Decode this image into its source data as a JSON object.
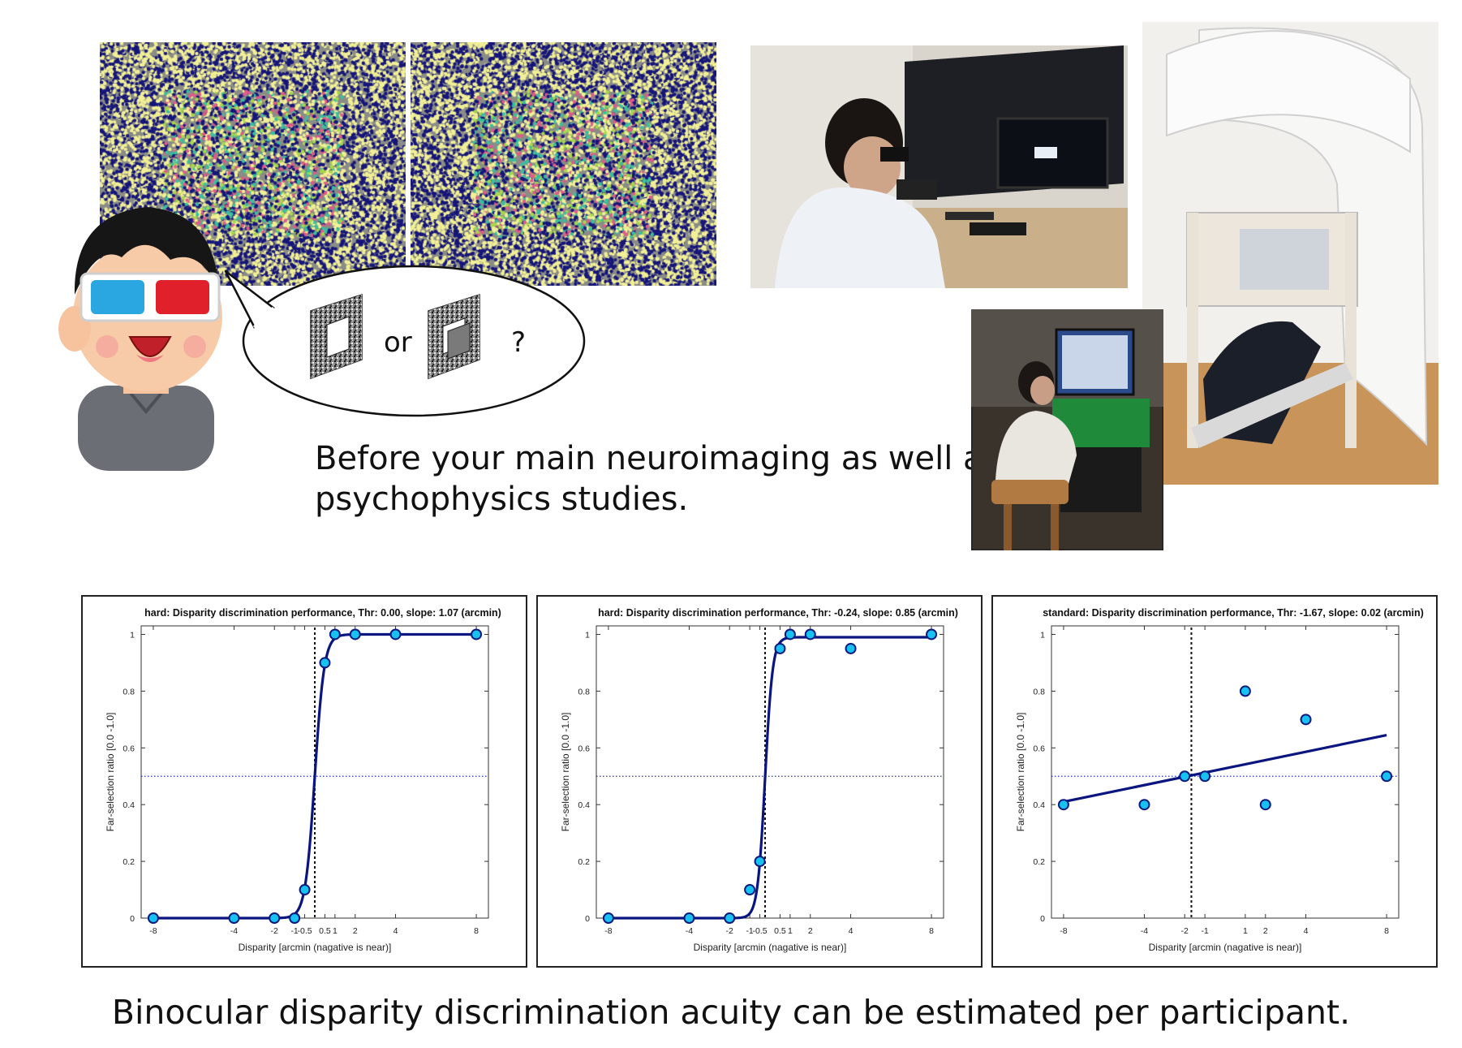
{
  "figure": {
    "caption_top_line1": "Before your main neuroimaging as well as",
    "caption_top_line2": "psychophysics studies.",
    "caption_bottom": "Binocular disparity discrimination acuity can be estimated per participant.",
    "bubble_or": "or",
    "bubble_question": "?"
  },
  "icons": {
    "stereogram": "random-dot-stereogram",
    "cartoon": "boy-with-3d-glasses-icon",
    "photo_lab": "lab-setup-photo",
    "photo_meg": "meg-scanner-photo",
    "photo_station": "experiment-station-photo"
  },
  "colors": {
    "curve": "#0a1580",
    "marker_fill": "#18c2f0",
    "marker_edge": "#0a1a80",
    "threshold_line": "#111111",
    "guide_line": "#2233bb",
    "glasses_blue": "#2aa7e0",
    "glasses_red": "#e0202a"
  },
  "chart_data": [
    {
      "type": "line",
      "title": "hard: Disparity discrimination performance, Thr: 0.00, slope: 1.07 (arcmin)",
      "xlabel": "Disparity [arcmin (nagative is near)]",
      "ylabel": "Far-selection ratio [0.0 -1.0]",
      "xlim": [
        -8.6,
        8.6
      ],
      "ylim": [
        0,
        1.03
      ],
      "xticks": [
        -8,
        -4,
        -2,
        -1,
        -0.5,
        0.5,
        1,
        2,
        4,
        8
      ],
      "xtick_labels": [
        "-8",
        "-4",
        "-2",
        "-1",
        "-0.5",
        "0.5",
        "1",
        "2",
        "4",
        "8"
      ],
      "yticks": [
        0,
        0.2,
        0.4,
        0.6,
        0.8,
        1
      ],
      "ytick_labels": [
        "0",
        "0.2",
        "0.4",
        "0.6",
        "0.8",
        "1"
      ],
      "threshold": 0.0,
      "chance_level": 0.5,
      "curve": {
        "model": "logistic",
        "mid": 0.0,
        "slope": 1.07,
        "lower": 0.0,
        "upper": 1.0
      },
      "points": {
        "x": [
          -8,
          -4,
          -2,
          -1,
          -0.5,
          0.5,
          1,
          2,
          4,
          8
        ],
        "y": [
          0,
          0,
          0,
          0,
          0.1,
          0.9,
          1,
          1,
          1,
          1
        ]
      },
      "grid": false
    },
    {
      "type": "line",
      "title": "hard: Disparity discrimination performance, Thr: -0.24, slope: 0.85 (arcmin)",
      "xlabel": "Disparity [arcmin (nagative is near)]",
      "ylabel": "Far-selection ratio [0.0 -1.0]",
      "xlim": [
        -8.6,
        8.6
      ],
      "ylim": [
        0,
        1.03
      ],
      "xticks": [
        -8,
        -4,
        -2,
        -1,
        -0.5,
        0.5,
        1,
        2,
        4,
        8
      ],
      "xtick_labels": [
        "-8",
        "-4",
        "-2",
        "-1",
        "-0.5",
        "0.5",
        "1",
        "2",
        "4",
        "8"
      ],
      "yticks": [
        0,
        0.2,
        0.4,
        0.6,
        0.8,
        1
      ],
      "ytick_labels": [
        "0",
        "0.2",
        "0.4",
        "0.6",
        "0.8",
        "1"
      ],
      "threshold": -0.24,
      "chance_level": 0.5,
      "curve": {
        "model": "logistic",
        "mid": -0.24,
        "slope": 0.85,
        "lower": 0.0,
        "upper": 0.99
      },
      "points": {
        "x": [
          -8,
          -4,
          -2,
          -1,
          -0.5,
          0.5,
          1,
          2,
          4,
          8
        ],
        "y": [
          0,
          0,
          0,
          0.1,
          0.2,
          0.95,
          1,
          1,
          0.95,
          1
        ]
      },
      "grid": false
    },
    {
      "type": "line",
      "title": "standard: Disparity discrimination performance, Thr: -1.67, slope: 0.02 (arcmin)",
      "xlabel": "Disparity [arcmin (nagative is near)]",
      "ylabel": "Far-selection ratio [0.0 -1.0]",
      "xlim": [
        -8.6,
        8.6
      ],
      "ylim": [
        0,
        1.03
      ],
      "xticks": [
        -8,
        -4,
        -2,
        -1,
        1,
        2,
        4,
        8
      ],
      "xtick_labels": [
        "-8",
        "-4",
        "-2",
        "-1",
        "1",
        "2",
        "4",
        "8"
      ],
      "yticks": [
        0,
        0.2,
        0.4,
        0.6,
        0.8,
        1
      ],
      "ytick_labels": [
        "0",
        "0.2",
        "0.4",
        "0.6",
        "0.8",
        "1"
      ],
      "threshold": -1.67,
      "chance_level": 0.5,
      "curve": {
        "model": "linear",
        "x0": -8,
        "y0": 0.41,
        "x1": 8,
        "y1": 0.645
      },
      "points": {
        "x": [
          -8,
          -4,
          -2,
          -1,
          1,
          2,
          4,
          8
        ],
        "y": [
          0.4,
          0.4,
          0.5,
          0.5,
          0.8,
          0.4,
          0.7,
          0.5
        ]
      },
      "grid": false
    }
  ]
}
